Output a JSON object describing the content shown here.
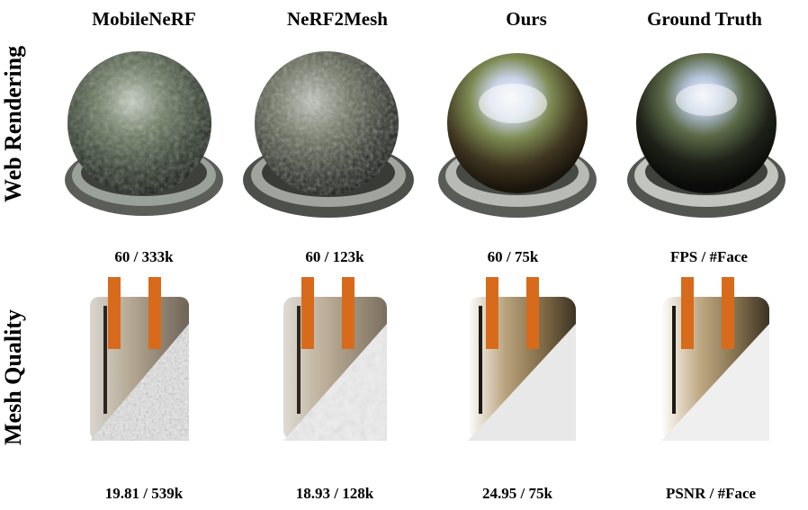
{
  "columns": [
    {
      "header": "MobileNeRF"
    },
    {
      "header": "NeRF2Mesh"
    },
    {
      "header": "Ours"
    },
    {
      "header": "Ground Truth"
    }
  ],
  "rows": [
    {
      "label": "Web Rendering",
      "metrics": [
        "60 / 333k",
        "60 / 123k",
        "60 / 75k",
        "FPS / #Face"
      ]
    },
    {
      "label": "Mesh Quality",
      "metrics": [
        "19.81 / 539k",
        "18.93 / 128k",
        "24.95 / 75k",
        "PSNR / #Face"
      ]
    }
  ]
}
